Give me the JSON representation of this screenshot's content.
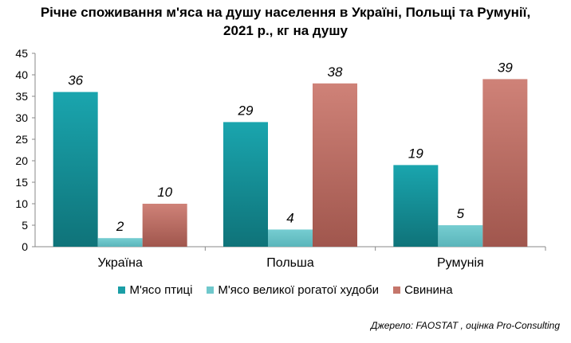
{
  "title_line1": "Річне споживання м'яса на душу населення в Україні, Польщі та Румунії,",
  "title_line2": "2021 р., кг на душу",
  "source": "Джерело: FAOSTAT , оцінка Pro-Consulting",
  "colors": {
    "poultry": "#1a9ea6",
    "beef": "#6fc8cc",
    "pork": "#c5766b"
  },
  "chart_data": {
    "type": "bar",
    "categories": [
      "Україна",
      "Польша",
      "Румунія"
    ],
    "series": [
      {
        "name": "М'ясо птиці",
        "values": [
          36,
          29,
          19
        ]
      },
      {
        "name": "М'ясо великої рогатої худоби",
        "values": [
          2,
          4,
          5
        ]
      },
      {
        "name": "Свинина",
        "values": [
          10,
          38,
          39
        ]
      }
    ],
    "ylim": [
      0,
      45
    ],
    "yticks": [
      "0",
      "5",
      "10",
      "15",
      "20",
      "25",
      "30",
      "35",
      "40",
      "45"
    ],
    "grid": false,
    "legend_position": "bottom"
  }
}
